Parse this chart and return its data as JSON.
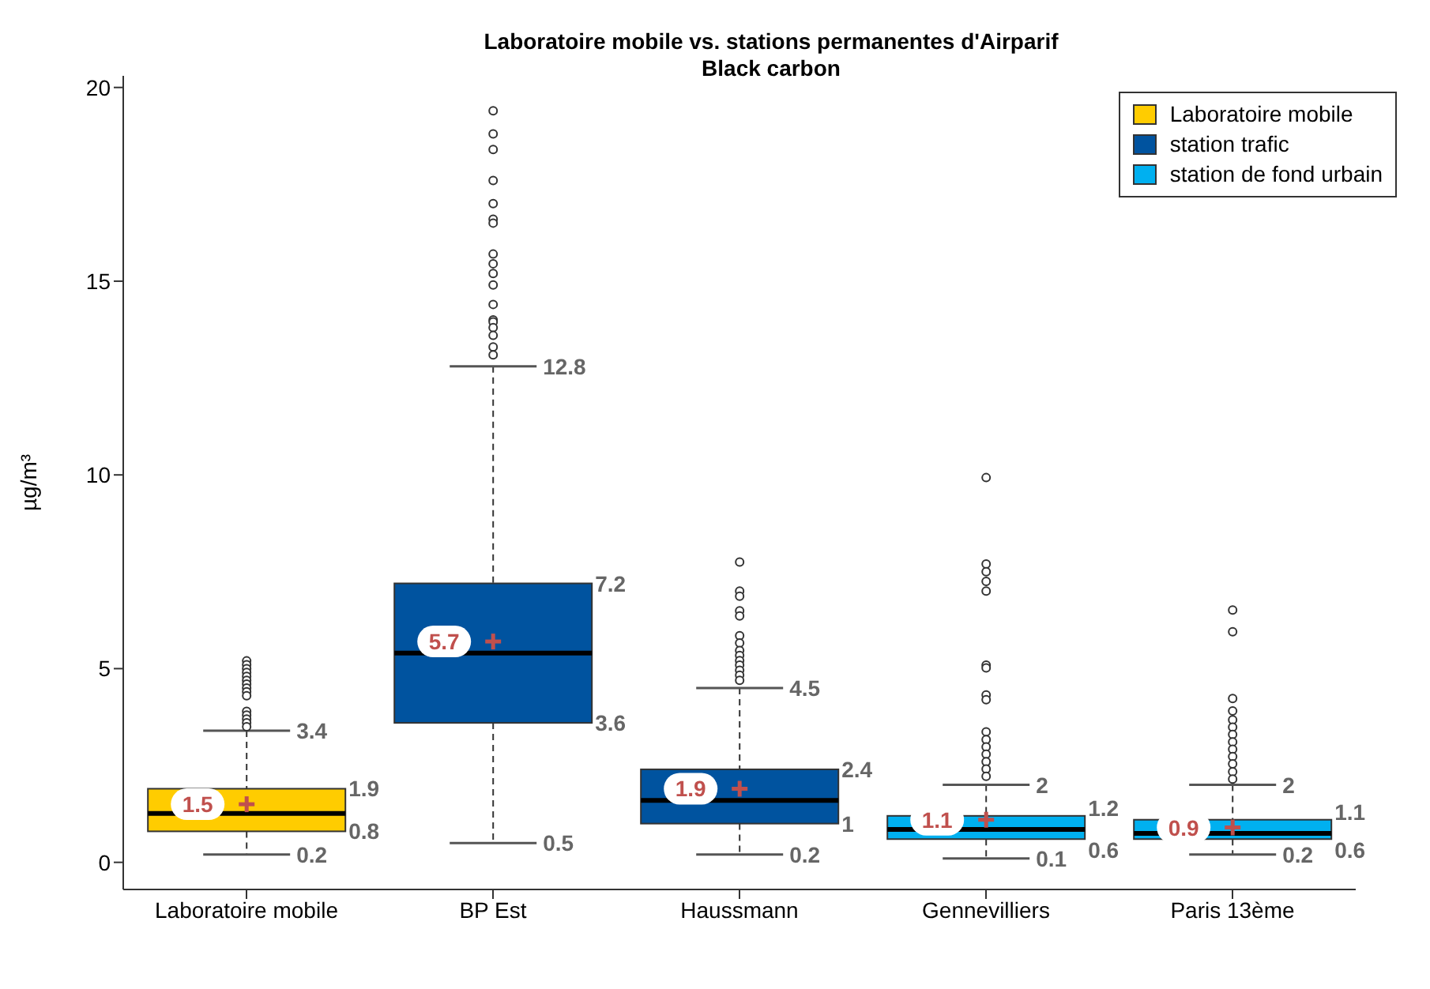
{
  "chart_data": {
    "type": "box",
    "title": "Laboratoire mobile vs. stations permanentes d'Airparif",
    "subtitle": "Black carbon",
    "ylabel": "µg/m³",
    "categories": [
      "Laboratoire mobile",
      "BP Est",
      "Haussmann",
      "Gennevilliers",
      "Paris 13ème"
    ],
    "ylim": [
      -0.7,
      20.3
    ],
    "yticks": [
      0,
      5,
      10,
      15,
      20
    ],
    "legend": "top right",
    "annotations": [
      "1.5",
      "1.9",
      "0.8",
      {
        "text": "3.4",
        "x": "Laboratoire mobile",
        "y": 3.4
      },
      {
        "text": "0.2",
        "x": "Laboratoire mobile",
        "y": 0.2
      },
      "5.7",
      "7.2",
      "3.6",
      {
        "text": "12.8",
        "x": "BP Est",
        "y": 12.8
      },
      {
        "text": "0.5",
        "x": "BP Est",
        "y": 0.5
      },
      "1.9",
      "2.4",
      "1",
      {
        "text": "4.5",
        "x": "Haussmann",
        "y": 4.5
      },
      {
        "text": "0.2",
        "x": "Haussmann",
        "y": 0.2
      },
      "1.1",
      "1.2",
      "0.6",
      {
        "text": "2",
        "x": "Gennevilliers",
        "y": 2
      },
      {
        "text": "0.1",
        "x": "Gennevilliers",
        "y": 0.1
      },
      "0.9",
      "1.1",
      "0.6",
      {
        "text": "2",
        "x": "Paris 13ème",
        "y": 2
      },
      {
        "text": "0.2",
        "x": "Paris 13ème",
        "y": 0.2
      }
    ],
    "series": [
      {
        "name": "Laboratoire mobile",
        "color": "#ffcc00",
        "boxes": [
          {
            "low": 0.2,
            "q1": 0.8,
            "median": 1.26,
            "q3": 1.9,
            "high": 3.4,
            "mean": 1.5,
            "outliers": [
              5.2,
              5.1,
              5.0,
              4.9,
              4.8,
              4.7,
              4.6,
              4.5,
              4.4,
              4.3,
              3.9,
              3.8,
              3.7,
              3.6,
              3.5
            ]
          },
          null,
          null,
          null,
          null
        ]
      },
      {
        "name": "station trafic",
        "color": "#00539f",
        "boxes": [
          null,
          {
            "low": 0.5,
            "q1": 3.6,
            "median": 5.4,
            "q3": 7.2,
            "high": 12.8,
            "mean": 5.7,
            "outliers": [
              19.4,
              18.8,
              18.4,
              17.6,
              17.0,
              16.6,
              16.5,
              15.7,
              15.45,
              15.2,
              14.9,
              14.4,
              14.0,
              13.95,
              13.8,
              13.6,
              13.3,
              13.1
            ]
          },
          {
            "low": 0.2,
            "q1": 1,
            "median": 1.6,
            "q3": 2.4,
            "high": 4.5,
            "mean": 1.9,
            "outliers": [
              7.75,
              7.0,
              6.87,
              6.49,
              6.36,
              5.85,
              5.66,
              5.47,
              5.34,
              5.21,
              5.09,
              4.96,
              4.83,
              4.7
            ]
          },
          null,
          null
        ]
      },
      {
        "name": "station de fond urbain",
        "color": "#00b0f0",
        "boxes": [
          null,
          null,
          null,
          {
            "low": 0.1,
            "q1": 0.6,
            "median": 0.85,
            "q3": 1.2,
            "high": 2,
            "mean": 1.1,
            "outliers": [
              9.93,
              7.7,
              7.5,
              7.25,
              7.0,
              5.09,
              5.02,
              4.32,
              4.2,
              3.37,
              3.17,
              2.98,
              2.79,
              2.6,
              2.41,
              2.22
            ]
          },
          {
            "low": 0.2,
            "q1": 0.6,
            "median": 0.75,
            "q3": 1.1,
            "high": 2,
            "mean": 0.9,
            "outliers": [
              6.51,
              5.95,
              4.23,
              3.91,
              3.68,
              3.49,
              3.3,
              3.11,
              2.92,
              2.73,
              2.54,
              2.34,
              2.15
            ]
          }
        ]
      }
    ]
  }
}
